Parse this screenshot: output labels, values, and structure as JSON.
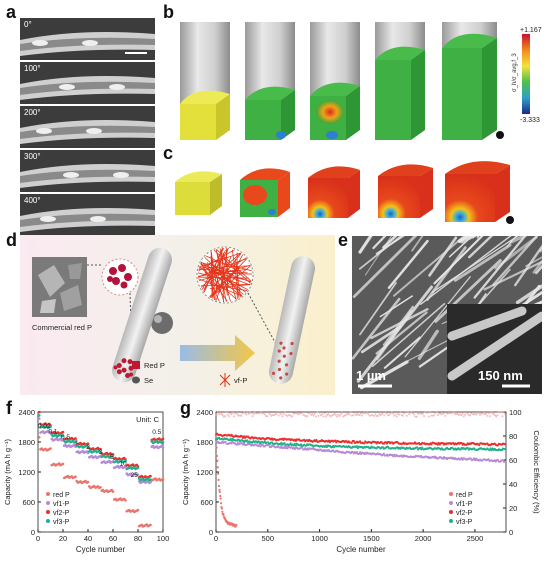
{
  "panels": {
    "a": {
      "letter": "a",
      "angles": [
        "0°",
        "100°",
        "200°",
        "300°",
        "400°"
      ]
    },
    "b": {
      "letter": "b"
    },
    "c": {
      "letter": "c"
    },
    "d": {
      "letter": "d",
      "inset_label": "Commercial red P",
      "legend": {
        "red_p": "Red P",
        "se": "Se",
        "vf_p": "vf-P"
      }
    },
    "e": {
      "letter": "e",
      "scale_left": "1 µm",
      "scale_right": "150 nm"
    },
    "f": {
      "letter": "f"
    },
    "g": {
      "letter": "g"
    }
  },
  "colorbar": {
    "max": "+1.167",
    "min": "-3.333",
    "label": "σ_h/σ_avg,f_3"
  },
  "colors": {
    "red_p": "#e8766f",
    "vf1_p": "#b88ad6",
    "vf2_p": "#e83030",
    "vf3_p": "#22b08a"
  },
  "chart_data": [
    {
      "id": "f",
      "type": "scatter",
      "title": "",
      "annotation": "Unit: C",
      "xlabel": "Cycle number",
      "ylabel": "Capacity (mA h g⁻¹)",
      "xlim": [
        0,
        100
      ],
      "ylim": [
        0,
        2400
      ],
      "xticks": [
        0,
        20,
        40,
        60,
        80,
        100
      ],
      "yticks": [
        0,
        600,
        1200,
        1800,
        2400
      ],
      "rate_labels": [
        {
          "text": "0.02",
          "x": 5,
          "y": 2080
        },
        {
          "text": "0.1",
          "x": 12,
          "y": 1970
        },
        {
          "text": "0.5",
          "x": 22,
          "y": 1860
        },
        {
          "text": "1",
          "x": 31,
          "y": 1760
        },
        {
          "text": "2",
          "x": 40,
          "y": 1660
        },
        {
          "text": "3",
          "x": 50,
          "y": 1560
        },
        {
          "text": "5",
          "x": 59,
          "y": 1460
        },
        {
          "text": "10",
          "x": 68,
          "y": 1330
        },
        {
          "text": "25",
          "x": 77,
          "y": 1100
        },
        {
          "text": "0.5",
          "x": 95,
          "y": 1960
        }
      ],
      "legend": [
        "red P",
        "vf1-P",
        "vf2-P",
        "vf3-P"
      ],
      "segments": [
        [
          1,
          10
        ],
        [
          11,
          20
        ],
        [
          21,
          30
        ],
        [
          31,
          40
        ],
        [
          41,
          50
        ],
        [
          51,
          60
        ],
        [
          61,
          70
        ],
        [
          71,
          80
        ],
        [
          81,
          90
        ],
        [
          91,
          100
        ]
      ],
      "series": [
        {
          "name": "red P",
          "levels": [
            1650,
            1350,
            1100,
            1000,
            900,
            820,
            650,
            420,
            130,
            1050
          ]
        },
        {
          "name": "vf1-P",
          "levels": [
            2000,
            1850,
            1720,
            1600,
            1500,
            1400,
            1300,
            1150,
            1000,
            1700
          ]
        },
        {
          "name": "vf2-P",
          "levels": [
            2150,
            1980,
            1860,
            1760,
            1660,
            1560,
            1460,
            1330,
            1100,
            1850
          ]
        },
        {
          "name": "vf3-P",
          "levels": [
            2100,
            1930,
            1810,
            1710,
            1610,
            1510,
            1410,
            1280,
            1050,
            1800
          ]
        }
      ]
    },
    {
      "id": "g",
      "type": "scatter",
      "title": "",
      "xlabel": "Cycle number",
      "ylabel": "Capacity (mA h g⁻¹)",
      "y2label": "Coulombic Efficiency (%)",
      "xlim": [
        0,
        2800
      ],
      "ylim": [
        0,
        2400
      ],
      "y2lim": [
        0,
        100
      ],
      "xticks": [
        0,
        500,
        1000,
        1500,
        2000,
        2500
      ],
      "yticks": [
        0,
        600,
        1200,
        1800,
        2400
      ],
      "y2ticks": [
        0,
        20,
        40,
        60,
        80,
        100
      ],
      "legend": [
        "red P",
        "vf1-P",
        "vf2-P",
        "vf3-P"
      ],
      "series": [
        {
          "name": "red P",
          "x": [
            1,
            10,
            30,
            60,
            100,
            150,
            200
          ],
          "y": [
            1850,
            1500,
            900,
            400,
            200,
            150,
            120
          ]
        },
        {
          "name": "vf1-P",
          "x": [
            1,
            500,
            1000,
            1500,
            2000,
            2500,
            2800
          ],
          "y": [
            1800,
            1720,
            1640,
            1560,
            1500,
            1450,
            1420
          ]
        },
        {
          "name": "vf2-P",
          "x": [
            1,
            500,
            1000,
            1500,
            2000,
            2500,
            2800
          ],
          "y": [
            1950,
            1860,
            1820,
            1790,
            1770,
            1760,
            1750
          ]
        },
        {
          "name": "vf3-P",
          "x": [
            1,
            500,
            1000,
            1500,
            2000,
            2500,
            2800
          ],
          "y": [
            1870,
            1780,
            1720,
            1690,
            1670,
            1660,
            1650
          ]
        }
      ],
      "ce": {
        "x_end": 2800,
        "value": 98
      }
    }
  ]
}
